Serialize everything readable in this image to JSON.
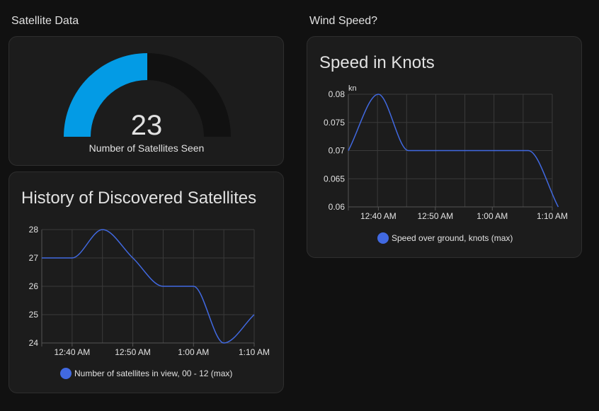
{
  "colors": {
    "background": "#111111",
    "card": "#1c1c1c",
    "gauge_fill": "#039be5",
    "gauge_track": "#111111",
    "series": "#4169e1",
    "grid": "#3a3a3a"
  },
  "left": {
    "section_title": "Satellite Data",
    "gauge": {
      "value": "23",
      "label": "Number of Satellites Seen",
      "fraction": 0.5
    },
    "history": {
      "title": "History of Discovered Satellites",
      "legend": "Number of satellites in view, 00 - 12 (max)"
    }
  },
  "right": {
    "section_title": "Wind Speed?",
    "speed": {
      "title": "Speed in Knots",
      "legend": "Speed over ground, knots (max)"
    }
  },
  "chart_data": [
    {
      "type": "line",
      "title": "History of Discovered Satellites",
      "xlabel": "",
      "ylabel": "",
      "x_ticks": [
        "12:40 AM",
        "12:50 AM",
        "1:00 AM",
        "1:10 AM"
      ],
      "ylim": [
        24,
        28
      ],
      "y_ticks": [
        "24",
        "25",
        "26",
        "27",
        "28"
      ],
      "grid": true,
      "series": [
        {
          "name": "Number of satellites in view, 00 - 12 (max)",
          "x": [
            0,
            5,
            10,
            15,
            20,
            25,
            30,
            35
          ],
          "values": [
            27,
            27,
            28,
            27,
            26,
            26,
            24,
            25
          ]
        }
      ]
    },
    {
      "type": "line",
      "title": "Speed in Knots",
      "xlabel": "",
      "ylabel": "kn",
      "x_ticks": [
        "12:40 AM",
        "12:50 AM",
        "1:00 AM",
        "1:10 AM"
      ],
      "ylim": [
        0.06,
        0.08
      ],
      "y_ticks": [
        "0.06",
        "0.065",
        "0.07",
        "0.075",
        "0.08"
      ],
      "grid": true,
      "series": [
        {
          "name": "Speed over ground, knots (max)",
          "x": [
            0,
            5,
            10,
            20,
            30,
            35
          ],
          "values": [
            0.07,
            0.08,
            0.07,
            0.07,
            0.07,
            0.06
          ]
        }
      ]
    }
  ]
}
